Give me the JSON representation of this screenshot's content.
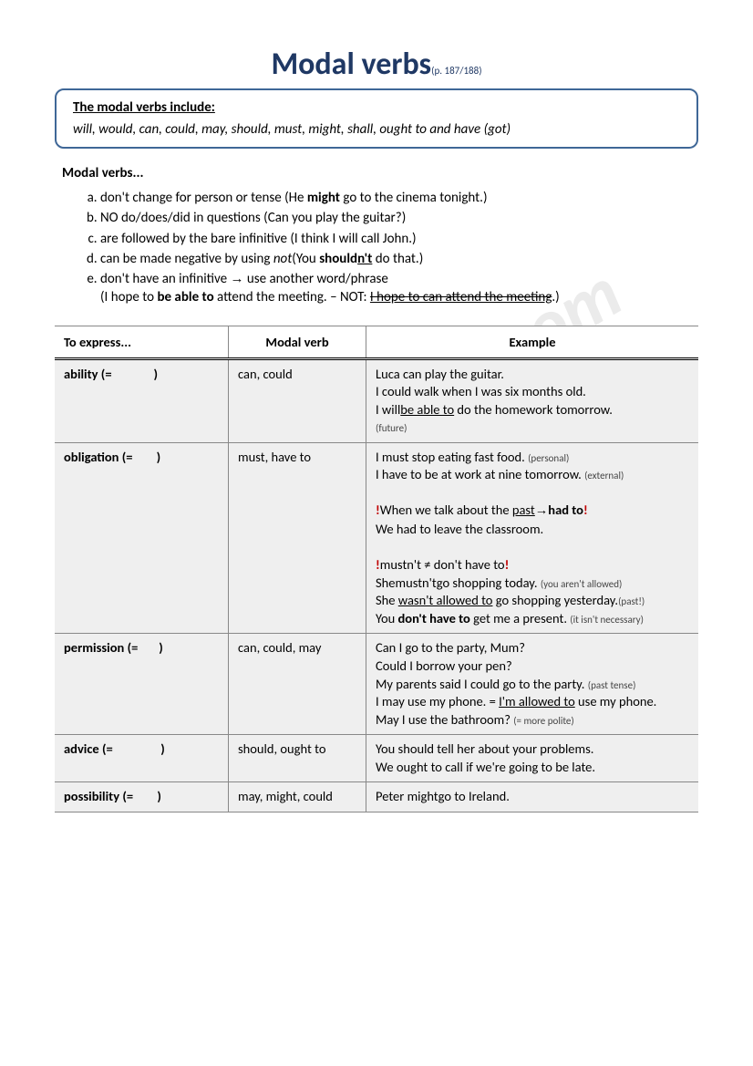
{
  "title": "Modal verbs",
  "pageref": "(p. 187/188)",
  "watermark": "ESLprintables.com",
  "box": {
    "label": "The modal verbs include:",
    "verbs": "will, would, can, could, may, should, must, might, shall, ought to and have (got)"
  },
  "rules_heading": "Modal verbs...",
  "rules": {
    "a": {
      "pre": "don't change for person or tense (He ",
      "bold": "might",
      "post": " go to the cinema tonight.)"
    },
    "b": {
      "pre": "NO do/does/did in questions (Can you play the guitar?)"
    },
    "c": {
      "pre": "are followed by the bare infinitive (I think I will call John.)"
    },
    "d": {
      "pre1": "can be made negative by using ",
      "it": "not",
      "mid": "(You ",
      "bold": "should",
      "under": "n't",
      "post": " do that.)"
    },
    "e": {
      "pre": "don't have an infinitive ",
      "arrow": "→",
      "mid": " use another word/phrase",
      "line2_pre": "(I hope to ",
      "line2_bold": "be able to",
      "line2_mid": " attend the meeting. – NOT: ",
      "line2_strike": "I hope to can attend the meeting",
      "line2_post": ".)"
    }
  },
  "table": {
    "headers": [
      "To express...",
      "Modal verb",
      "Example"
    ],
    "rows": [
      {
        "express": "ability (=",
        "close": ")",
        "modal": "can, could",
        "ex": {
          "l1": "Luca can play the guitar.",
          "l2": "I could walk when I was six months old.",
          "l3a": "I will",
          "l3u": "be able to",
          "l3b": " do the homework tomorrow.",
          "l3s": "(future)"
        }
      },
      {
        "express": "obligation (=",
        "close": ")",
        "modal": "must, have to",
        "ex": {
          "l1": "I must stop eating fast food. ",
          "l1s": "(personal)",
          "l2": "I have to be at work at nine tomorrow. ",
          "l2s": "(external)",
          "l3r1": "!",
          "l3a": "When we talk about the ",
          "l3u": "past",
          "l3arrow": "→",
          "l3b": "had to",
          "l3r2": "!",
          "l4": "We had to leave the classroom.",
          "l5r1": "!",
          "l5a": "mustn't ≠ don't have to",
          "l5r2": "!",
          "l6": "Shemustn'tgo shopping today. ",
          "l6s": "(you aren't allowed)",
          "l7a": "She ",
          "l7u": "wasn't allowed to",
          "l7b": " go shopping yesterday.",
          "l7s": "(past!)",
          "l8a": "You ",
          "l8b": "don't have to",
          "l8c": " get me a present. ",
          "l8s": "(it isn't necessary)"
        }
      },
      {
        "express": "permission (=",
        "close": ")",
        "modal": "can, could, may",
        "ex": {
          "l1": "Can I go to the party, Mum?",
          "l2": "Could I borrow your pen?",
          "l3": "My parents said I could go to the party. ",
          "l3s": "(past tense)",
          "l4a": "I may use my phone. = ",
          "l4u": "I'm allowed to",
          "l4b": " use my phone.",
          "l5": "May I use the bathroom? ",
          "l5s": "(= more polite)"
        }
      },
      {
        "express": "advice (=",
        "close": ")",
        "modal": "should, ought to",
        "ex": {
          "l1": "You should tell her about your problems.",
          "l2": "We ought to call if we're going to be late."
        }
      },
      {
        "express": "possibility (=",
        "close": ")",
        "modal": "may, might, could",
        "ex": {
          "l1": "Peter mightgo to Ireland."
        }
      }
    ]
  }
}
